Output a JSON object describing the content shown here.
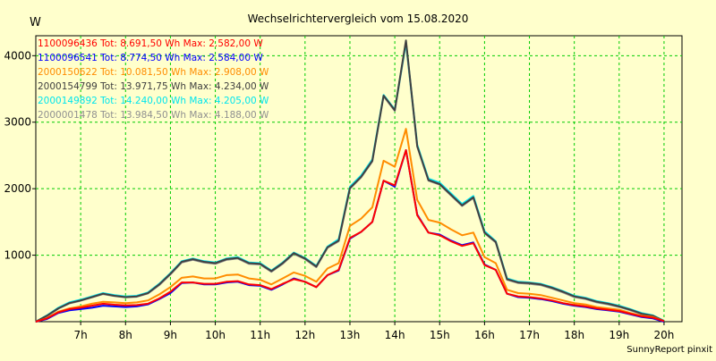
{
  "chart_data": {
    "type": "line",
    "title": "Wechselrichtervergleich vom 15.08.2020",
    "ylabel": "W",
    "xlabel": "",
    "footer": "SunnyReport pinxit",
    "ylim": [
      0,
      4300
    ],
    "xlim": [
      6.0,
      20.4
    ],
    "y_ticks": [
      1000,
      2000,
      3000,
      4000
    ],
    "x_ticks": [
      {
        "label": "7h",
        "value": 7
      },
      {
        "label": "8h",
        "value": 8
      },
      {
        "label": "9h",
        "value": 9
      },
      {
        "label": "10h",
        "value": 10
      },
      {
        "label": "11h",
        "value": 11
      },
      {
        "label": "12h",
        "value": 12
      },
      {
        "label": "13h",
        "value": 13
      },
      {
        "label": "14h",
        "value": 14
      },
      {
        "label": "15h",
        "value": 15
      },
      {
        "label": "16h",
        "value": 16
      },
      {
        "label": "17h",
        "value": 17
      },
      {
        "label": "18h",
        "value": 18
      },
      {
        "label": "19h",
        "value": 19
      },
      {
        "label": "20h",
        "value": 20
      }
    ],
    "grid": true,
    "legend_position": "top-left",
    "x": [
      6.0,
      6.25,
      6.5,
      6.75,
      7.0,
      7.25,
      7.5,
      7.75,
      8.0,
      8.25,
      8.5,
      8.75,
      9.0,
      9.25,
      9.5,
      9.75,
      10.0,
      10.25,
      10.5,
      10.75,
      11.0,
      11.25,
      11.5,
      11.75,
      12.0,
      12.25,
      12.5,
      12.75,
      13.0,
      13.25,
      13.5,
      13.75,
      14.0,
      14.25,
      14.5,
      14.75,
      15.0,
      15.25,
      15.5,
      15.75,
      16.0,
      16.25,
      16.5,
      16.75,
      17.0,
      17.25,
      17.5,
      17.75,
      18.0,
      18.25,
      18.5,
      18.75,
      19.0,
      19.25,
      19.5,
      19.75,
      20.0
    ],
    "series": [
      {
        "name": "1100096436 Tot: 8.691,50 Wh Max: 2.582,00 W",
        "color": "#ff0000",
        "values": [
          0,
          50,
          140,
          190,
          210,
          240,
          270,
          255,
          245,
          250,
          270,
          350,
          450,
          590,
          590,
          570,
          570,
          600,
          610,
          560,
          550,
          490,
          570,
          640,
          600,
          520,
          700,
          780,
          1260,
          1350,
          1500,
          2120,
          2050,
          2580,
          1600,
          1340,
          1300,
          1210,
          1140,
          1180,
          850,
          780,
          420,
          380,
          370,
          350,
          320,
          280,
          250,
          230,
          200,
          180,
          160,
          120,
          80,
          60,
          10
        ]
      },
      {
        "name": "1100096541 Tot: 8.774,50 Wh Max: 2.584,00 W",
        "color": "#0000ff",
        "values": [
          0,
          40,
          130,
          170,
          190,
          210,
          240,
          230,
          220,
          230,
          260,
          340,
          430,
          580,
          590,
          560,
          560,
          590,
          600,
          550,
          540,
          480,
          560,
          650,
          600,
          520,
          700,
          770,
          1250,
          1350,
          1500,
          2120,
          2030,
          2580,
          1610,
          1340,
          1310,
          1220,
          1150,
          1190,
          860,
          780,
          420,
          370,
          360,
          340,
          310,
          270,
          240,
          220,
          190,
          170,
          150,
          110,
          70,
          50,
          0
        ]
      },
      {
        "name": "2000150622 Tot: 10.081,50 Wh Max: 2.908,00 W",
        "color": "#ff8c00",
        "values": [
          0,
          55,
          150,
          200,
          230,
          270,
          300,
          290,
          280,
          290,
          320,
          410,
          520,
          660,
          680,
          650,
          650,
          700,
          710,
          650,
          630,
          560,
          650,
          740,
          690,
          600,
          800,
          880,
          1440,
          1550,
          1720,
          2420,
          2330,
          2900,
          1830,
          1530,
          1490,
          1390,
          1300,
          1340,
          970,
          880,
          480,
          430,
          420,
          400,
          360,
          320,
          280,
          260,
          220,
          200,
          180,
          130,
          90,
          70,
          10
        ]
      },
      {
        "name": "2000154799 Tot: 13.971,75 Wh Max: 4.234,00 W",
        "color": "#404040",
        "values": [
          0,
          90,
          200,
          280,
          320,
          370,
          420,
          390,
          370,
          380,
          430,
          560,
          720,
          900,
          940,
          900,
          880,
          940,
          960,
          880,
          870,
          760,
          880,
          1030,
          950,
          830,
          1120,
          1220,
          2010,
          2180,
          2420,
          3400,
          3180,
          4230,
          2640,
          2130,
          2070,
          1910,
          1750,
          1870,
          1340,
          1200,
          640,
          590,
          580,
          560,
          510,
          450,
          380,
          350,
          300,
          270,
          230,
          180,
          120,
          90,
          10
        ]
      },
      {
        "name": "2000149892 Tot: 14.240,00 Wh Max: 4.205,00 W",
        "color": "#00e5ee",
        "values": [
          0,
          95,
          210,
          290,
          330,
          380,
          430,
          400,
          380,
          390,
          440,
          570,
          730,
          910,
          950,
          910,
          890,
          950,
          970,
          890,
          880,
          770,
          890,
          1040,
          960,
          840,
          1130,
          1240,
          2030,
          2200,
          2440,
          3410,
          3190,
          4200,
          2660,
          2150,
          2090,
          1930,
          1770,
          1890,
          1360,
          1210,
          650,
          600,
          590,
          570,
          520,
          460,
          390,
          360,
          310,
          280,
          240,
          190,
          130,
          95,
          15
        ]
      },
      {
        "name": "2000001478 Tot: 13.984,50 Wh Max: 4.188,00 W",
        "color": "#909090",
        "values": [
          0,
          85,
          195,
          275,
          315,
          365,
          415,
          385,
          365,
          375,
          425,
          550,
          710,
          890,
          930,
          890,
          870,
          930,
          950,
          870,
          860,
          750,
          870,
          1020,
          940,
          820,
          1110,
          1210,
          2000,
          2170,
          2410,
          3390,
          3170,
          4190,
          2630,
          2120,
          2060,
          1900,
          1740,
          1860,
          1330,
          1190,
          630,
          580,
          570,
          550,
          500,
          440,
          370,
          340,
          290,
          260,
          220,
          170,
          115,
          85,
          10
        ]
      }
    ]
  },
  "colors": {
    "background": "#ffffcc",
    "plot_area": "#ffffcc",
    "grid": "#00cc00",
    "axis": "#000000"
  }
}
